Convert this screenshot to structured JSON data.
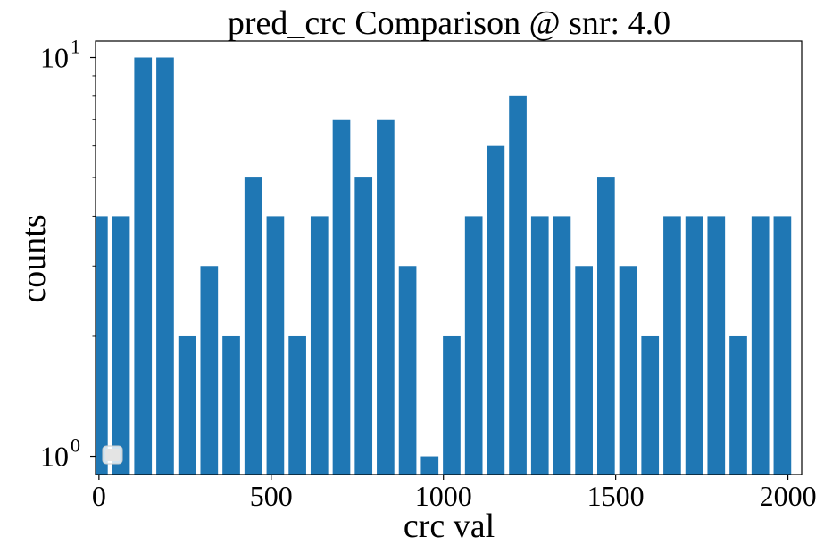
{
  "chart_data": {
    "type": "bar",
    "title": "pred_crc Comparison @ snr: 4.0",
    "xlabel": "crc val",
    "ylabel": "counts",
    "xlim": [
      -10,
      2040
    ],
    "ylim": [
      0.9,
      11
    ],
    "yscale": "log",
    "bar_width": 51,
    "bar_color": "#1f77b4",
    "x_ticks": [
      0,
      500,
      1000,
      1500,
      2000
    ],
    "y_ticks": [
      {
        "value": 1,
        "base": "10",
        "exp": "0"
      },
      {
        "value": 10,
        "base": "10",
        "exp": "1"
      }
    ],
    "legend": {
      "placement": "lower-left",
      "entries": [
        ""
      ]
    },
    "x": [
      0,
      64,
      128,
      192,
      256,
      320,
      384,
      448,
      512,
      576,
      640,
      704,
      768,
      832,
      896,
      960,
      1024,
      1088,
      1152,
      1216,
      1280,
      1344,
      1408,
      1472,
      1536,
      1600,
      1664,
      1728,
      1792,
      1856,
      1920,
      1984
    ],
    "values": [
      4,
      4,
      10,
      10,
      2,
      3,
      2,
      5,
      4,
      2,
      4,
      7,
      5,
      7,
      3,
      1,
      2,
      4,
      6,
      8,
      4,
      4,
      3,
      5,
      3,
      2,
      4,
      4,
      4,
      2,
      4,
      4
    ]
  }
}
